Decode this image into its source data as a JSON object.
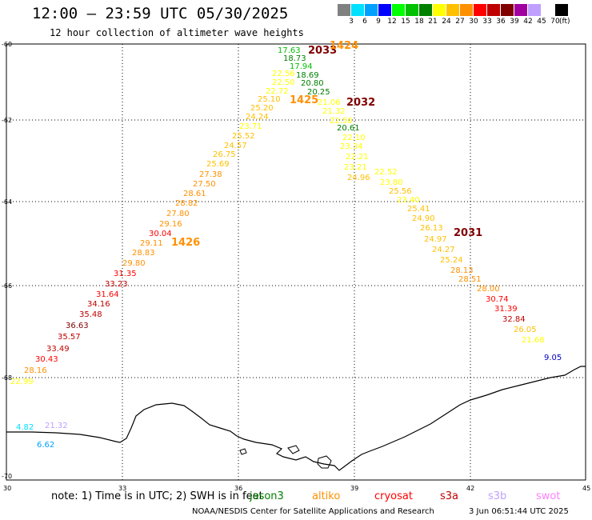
{
  "header": {
    "title": "12:00 – 23:59 UTC 05/30/2025",
    "subtitle": "12 hour collection of altimeter wave heights"
  },
  "legend": {
    "unit": "(ft)",
    "items": [
      {
        "label": "3",
        "color": "#808080"
      },
      {
        "label": "6",
        "color": "#00e0ff"
      },
      {
        "label": "9",
        "color": "#00a0ff"
      },
      {
        "label": "12",
        "color": "#0000ff"
      },
      {
        "label": "15",
        "color": "#00ff00"
      },
      {
        "label": "18",
        "color": "#00c000"
      },
      {
        "label": "21",
        "color": "#008000"
      },
      {
        "label": "24",
        "color": "#ffff00"
      },
      {
        "label": "27",
        "color": "#ffc000"
      },
      {
        "label": "30",
        "color": "#ff9000"
      },
      {
        "label": "33",
        "color": "#ff0000"
      },
      {
        "label": "36",
        "color": "#c00000"
      },
      {
        "label": "39",
        "color": "#800000"
      },
      {
        "label": "42",
        "color": "#a000a0"
      },
      {
        "label": "45",
        "color": "#c0a0ff"
      },
      {
        "label": "70",
        "color": "#ffffff"
      },
      {
        "label": "",
        "color": "#000000"
      }
    ]
  },
  "axes": {
    "lat_labels": [
      "-60",
      "-62",
      "-64",
      "-66",
      "-68",
      "-70"
    ],
    "lon_labels": [
      "30",
      "33",
      "36",
      "39",
      "42",
      "45"
    ]
  },
  "notes": {
    "note": "note: 1) Time is in UTC; 2) SWH is in feet",
    "satellites": [
      {
        "name": "jason3",
        "color": "#008000"
      },
      {
        "name": "altiko",
        "color": "#ff9000"
      },
      {
        "name": "cryosat",
        "color": "#ff0000"
      },
      {
        "name": "s3a",
        "color": "#c00000"
      },
      {
        "name": "s3b",
        "color": "#c0a0ff"
      },
      {
        "name": "swot",
        "color": "#ff80ff"
      }
    ]
  },
  "footer": {
    "org": "NOAA/NESDIS Center for Satellite Applications and Research",
    "stamp": "3 Jun 06:51:44 UTC 2025"
  },
  "time_labels": [
    {
      "text": "2033",
      "color": "#800000"
    },
    {
      "text": "1424",
      "color": "#ff9000"
    },
    {
      "text": "1425",
      "color": "#ff9000"
    },
    {
      "text": "2032",
      "color": "#800000"
    },
    {
      "text": "1426",
      "color": "#ff9000"
    },
    {
      "text": "2031",
      "color": "#800000"
    }
  ],
  "wave_heights": [
    {
      "v": "17.63",
      "c": "#00c000"
    },
    {
      "v": "18.73",
      "c": "#008000"
    },
    {
      "v": "17.94",
      "c": "#00c000"
    },
    {
      "v": "18.69",
      "c": "#008000"
    },
    {
      "v": "20.80",
      "c": "#008000"
    },
    {
      "v": "20.25",
      "c": "#008000"
    },
    {
      "v": "20.61",
      "c": "#008000"
    },
    {
      "v": "22.56",
      "c": "#ffff00"
    },
    {
      "v": "22.50",
      "c": "#ffff00"
    },
    {
      "v": "22.72",
      "c": "#ffff00"
    },
    {
      "v": "25.10",
      "c": "#ffc000"
    },
    {
      "v": "25.20",
      "c": "#ffc000"
    },
    {
      "v": "24.24",
      "c": "#ffc000"
    },
    {
      "v": "23.71",
      "c": "#ffff00"
    },
    {
      "v": "25.52",
      "c": "#ffc000"
    },
    {
      "v": "24.57",
      "c": "#ffc000"
    },
    {
      "v": "26.75",
      "c": "#ffc000"
    },
    {
      "v": "25.69",
      "c": "#ffc000"
    },
    {
      "v": "27.38",
      "c": "#ff9000"
    },
    {
      "v": "27.50",
      "c": "#ff9000"
    },
    {
      "v": "28.61",
      "c": "#ff9000"
    },
    {
      "v": "28.82",
      "c": "#ff9000"
    },
    {
      "v": "27.80",
      "c": "#ff9000"
    },
    {
      "v": "29.16",
      "c": "#ff9000"
    },
    {
      "v": "30.04",
      "c": "#ff0000"
    },
    {
      "v": "29.11",
      "c": "#ff9000"
    },
    {
      "v": "28.83",
      "c": "#ff9000"
    },
    {
      "v": "29.80",
      "c": "#ff9000"
    },
    {
      "v": "31.35",
      "c": "#ff0000"
    },
    {
      "v": "33.23",
      "c": "#c00000"
    },
    {
      "v": "31.64",
      "c": "#ff0000"
    },
    {
      "v": "34.16",
      "c": "#c00000"
    },
    {
      "v": "35.48",
      "c": "#c00000"
    },
    {
      "v": "36.63",
      "c": "#800000"
    },
    {
      "v": "35.57",
      "c": "#c00000"
    },
    {
      "v": "33.49",
      "c": "#c00000"
    },
    {
      "v": "30.43",
      "c": "#ff0000"
    },
    {
      "v": "28.16",
      "c": "#ff9000"
    },
    {
      "v": "22.99",
      "c": "#ffff00"
    },
    {
      "v": "21.06",
      "c": "#ffff00"
    },
    {
      "v": "21.32",
      "c": "#ffff00"
    },
    {
      "v": "22.50",
      "c": "#ffff00"
    },
    {
      "v": "22.10",
      "c": "#ffff00"
    },
    {
      "v": "23.34",
      "c": "#ffff00"
    },
    {
      "v": "22.21",
      "c": "#ffff00"
    },
    {
      "v": "23.21",
      "c": "#ffff00"
    },
    {
      "v": "24.96",
      "c": "#ffc000"
    },
    {
      "v": "22.52",
      "c": "#ffff00"
    },
    {
      "v": "23.80",
      "c": "#ffff00"
    },
    {
      "v": "25.56",
      "c": "#ffc000"
    },
    {
      "v": "23.40",
      "c": "#ffff00"
    },
    {
      "v": "25.41",
      "c": "#ffc000"
    },
    {
      "v": "24.90",
      "c": "#ffc000"
    },
    {
      "v": "26.13",
      "c": "#ffc000"
    },
    {
      "v": "24.97",
      "c": "#ffc000"
    },
    {
      "v": "24.27",
      "c": "#ffc000"
    },
    {
      "v": "25.24",
      "c": "#ffc000"
    },
    {
      "v": "28.13",
      "c": "#ff9000"
    },
    {
      "v": "28.51",
      "c": "#ff9000"
    },
    {
      "v": "28.00",
      "c": "#ff9000"
    },
    {
      "v": "30.74",
      "c": "#ff0000"
    },
    {
      "v": "31.39",
      "c": "#ff0000"
    },
    {
      "v": "32.84",
      "c": "#c00000"
    },
    {
      "v": "26.05",
      "c": "#ffc000"
    },
    {
      "v": "21.68",
      "c": "#ffff00"
    },
    {
      "v": "9.05",
      "c": "#0000c0"
    },
    {
      "v": "4.82",
      "c": "#00e0ff"
    },
    {
      "v": "21.32",
      "c": "#c0a0ff"
    },
    {
      "v": "6.62",
      "c": "#00a0ff"
    }
  ]
}
